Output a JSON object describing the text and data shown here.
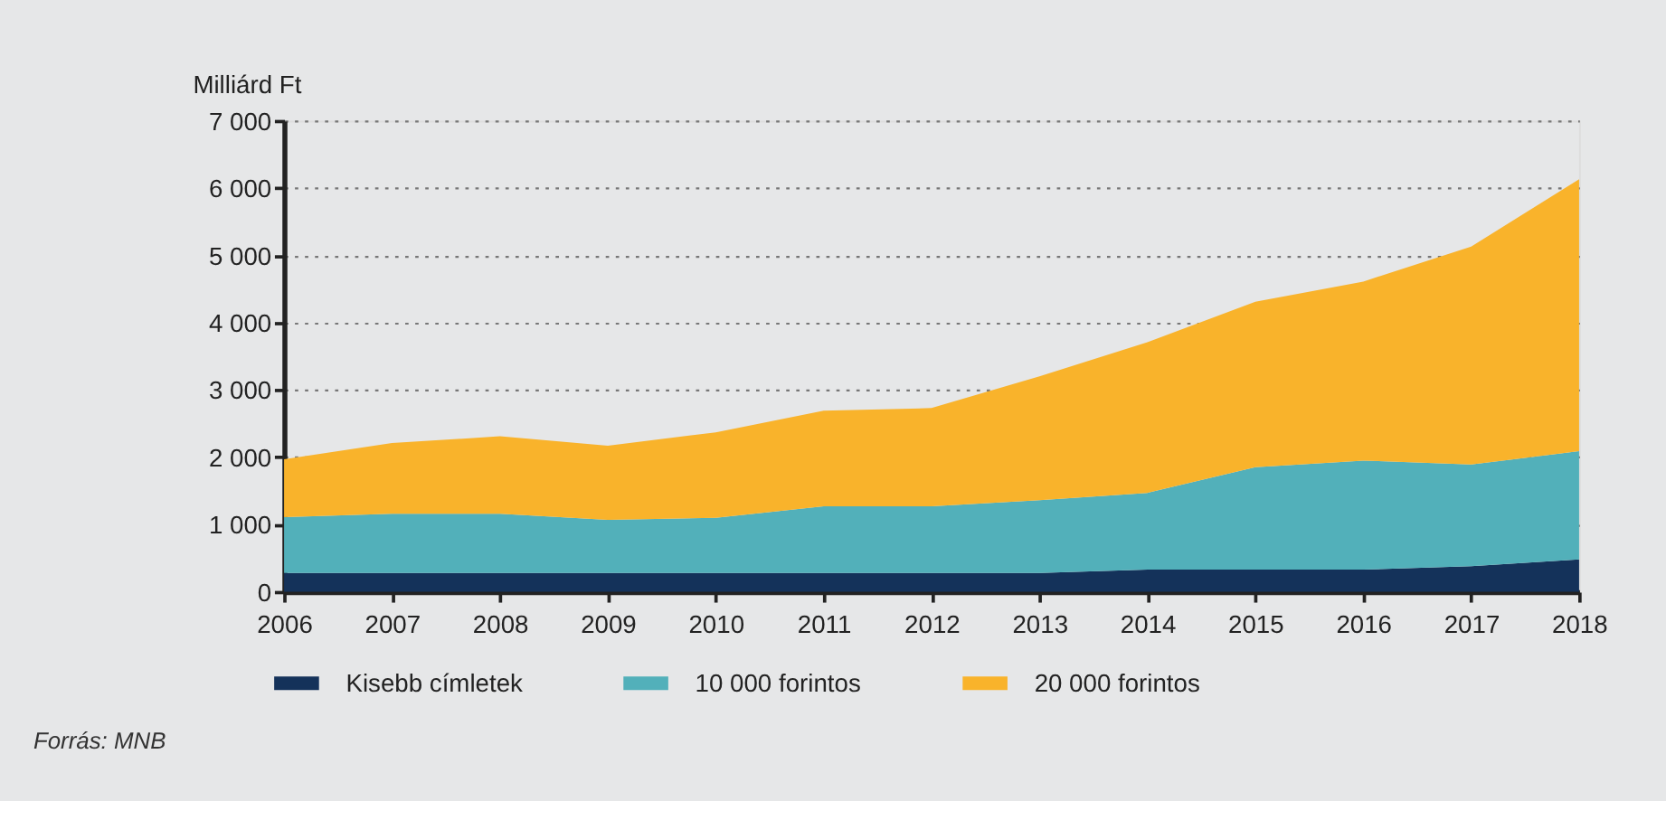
{
  "chart_data": {
    "type": "area",
    "stacked": true,
    "ylabel": "Milliárd Ft",
    "x": [
      2006,
      2007,
      2008,
      2009,
      2010,
      2011,
      2012,
      2013,
      2014,
      2015,
      2016,
      2017,
      2018
    ],
    "xlim": [
      2006,
      2018
    ],
    "xticks": [
      2006,
      2007,
      2008,
      2009,
      2010,
      2011,
      2012,
      2013,
      2014,
      2015,
      2016,
      2017,
      2018
    ],
    "ylim": [
      0,
      7000
    ],
    "yticks": [
      0,
      {
        "value": 1000,
        "label": "1 000"
      },
      {
        "value": 2000,
        "label": "2 000"
      },
      {
        "value": 3000,
        "label": "3 000"
      },
      {
        "value": 4000,
        "label": "4 000"
      },
      {
        "value": 5000,
        "label": "5 000"
      },
      {
        "value": 6000,
        "label": "6 000"
      },
      {
        "value": 7000,
        "label": "7 000"
      }
    ],
    "series": [
      {
        "name": "Kisebb címletek",
        "color": "#14325a",
        "values": [
          280,
          280,
          280,
          280,
          280,
          280,
          280,
          280,
          330,
          330,
          330,
          380,
          480
        ]
      },
      {
        "name": "10 000 forintos",
        "color": "#52b0ba",
        "values": [
          830,
          880,
          880,
          790,
          820,
          990,
          990,
          1080,
          1140,
          1520,
          1620,
          1510,
          1610
        ]
      },
      {
        "name": "20 000 forintos",
        "color": "#f9b32b",
        "values": [
          860,
          1050,
          1150,
          1100,
          1270,
          1420,
          1460,
          1840,
          2240,
          2460,
          2660,
          3240,
          4040
        ]
      }
    ],
    "grid": "y",
    "legend": "bottom",
    "annotations": [
      "Forrás: MNB"
    ]
  }
}
